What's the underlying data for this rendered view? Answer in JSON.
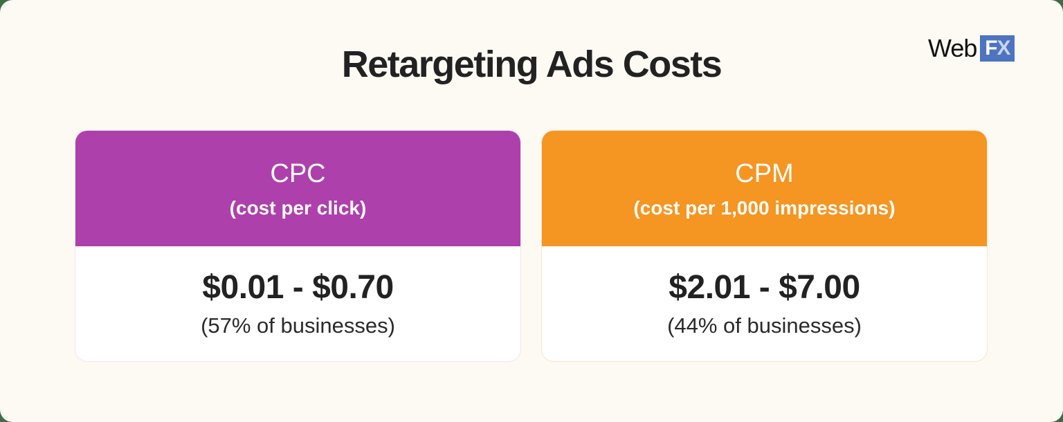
{
  "title": "Retargeting Ads Costs",
  "logo": {
    "text_left": "Web",
    "text_box_f": "F",
    "text_box_x": "X"
  },
  "colors": {
    "cpc": "#ad40aa",
    "cpm": "#f59522",
    "background": "#fdfaf4",
    "logo_blue": "#4e74c0"
  },
  "cards": [
    {
      "abbr": "CPC",
      "full": "(cost per click)",
      "range": "$0.01 - $0.70",
      "share": "(57% of businesses)"
    },
    {
      "abbr": "CPM",
      "full": "(cost per 1,000 impressions)",
      "range": "$2.01 - $7.00",
      "share": "(44% of businesses)"
    }
  ]
}
